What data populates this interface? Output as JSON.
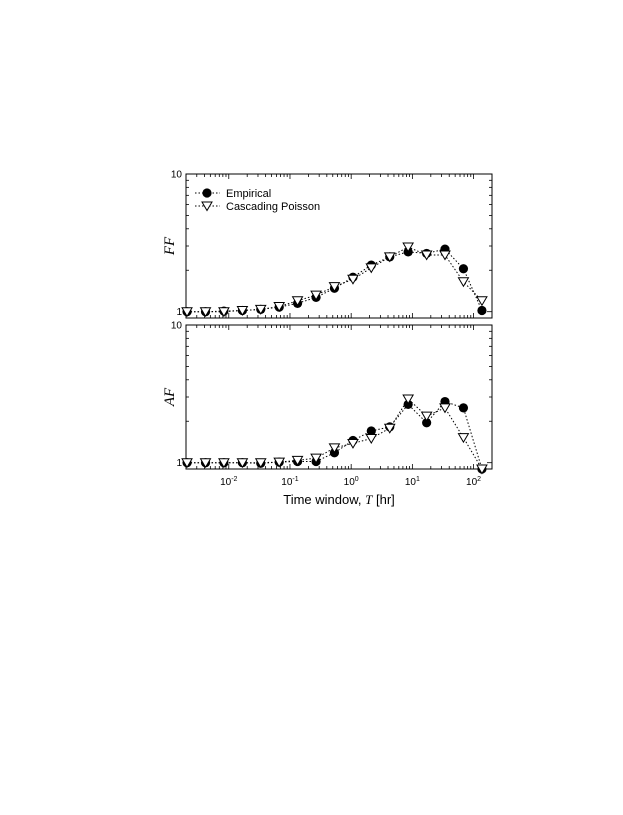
{
  "chart_data": [
    {
      "type": "line",
      "ylabel": "FF",
      "xscale": "log",
      "yscale": "log",
      "xlim": [
        0.002,
        200
      ],
      "ylim": [
        0.9,
        10
      ],
      "yticks": [
        1,
        10
      ],
      "ytick_labels": [
        "1",
        "10"
      ],
      "legend": {
        "placement": "top-left",
        "entries": [
          "Empirical",
          "Cascading Poisson"
        ]
      },
      "x": [
        0.00208,
        0.00417,
        0.00833,
        0.0167,
        0.0333,
        0.0667,
        0.133,
        0.267,
        0.533,
        1.07,
        2.13,
        4.27,
        8.53,
        17.1,
        34.1,
        68.3,
        137
      ],
      "series": [
        {
          "name": "Empirical",
          "marker": "filled-circle",
          "values": [
            1.0,
            1.0,
            1.01,
            1.02,
            1.04,
            1.08,
            1.15,
            1.27,
            1.48,
            1.78,
            2.18,
            2.5,
            2.72,
            2.65,
            2.85,
            2.05,
            1.02
          ]
        },
        {
          "name": "Cascading Poisson",
          "marker": "open-triangle-down",
          "values": [
            1.0,
            1.0,
            1.0,
            1.02,
            1.04,
            1.09,
            1.2,
            1.32,
            1.52,
            1.72,
            2.08,
            2.5,
            2.95,
            2.58,
            2.58,
            1.65,
            1.2
          ]
        }
      ]
    },
    {
      "type": "line",
      "ylabel": "AF",
      "xlabel_prefix": "Time window, ",
      "xlabel_var": "T",
      "xlabel_suffix": " [hr]",
      "xscale": "log",
      "yscale": "log",
      "xlim": [
        0.002,
        200
      ],
      "ylim": [
        0.9,
        10
      ],
      "yticks": [
        1,
        10
      ],
      "ytick_labels": [
        "1",
        "10"
      ],
      "xtick_values": [
        0.01,
        0.1,
        1,
        10,
        100
      ],
      "xtick_labels": [
        {
          "base": "10",
          "exp": "-2"
        },
        {
          "base": "10",
          "exp": "-1"
        },
        {
          "base": "10",
          "exp": "0"
        },
        {
          "base": "10",
          "exp": "1"
        },
        {
          "base": "10",
          "exp": "2"
        }
      ],
      "x": [
        0.00208,
        0.00417,
        0.00833,
        0.0167,
        0.0333,
        0.0667,
        0.133,
        0.267,
        0.533,
        1.07,
        2.13,
        4.27,
        8.53,
        17.1,
        34.1,
        68.3,
        137
      ],
      "series": [
        {
          "name": "Empirical",
          "marker": "filled-circle",
          "values": [
            1.0,
            1.0,
            1.0,
            1.0,
            0.99,
            1.01,
            1.02,
            1.02,
            1.18,
            1.45,
            1.7,
            1.82,
            2.65,
            1.95,
            2.78,
            2.5,
            0.9
          ]
        },
        {
          "name": "Cascading Poisson",
          "marker": "open-triangle-down",
          "values": [
            1.0,
            1.0,
            1.0,
            1.0,
            1.0,
            1.01,
            1.04,
            1.08,
            1.28,
            1.38,
            1.5,
            1.78,
            2.9,
            2.18,
            2.5,
            1.52,
            0.9
          ]
        }
      ]
    }
  ]
}
